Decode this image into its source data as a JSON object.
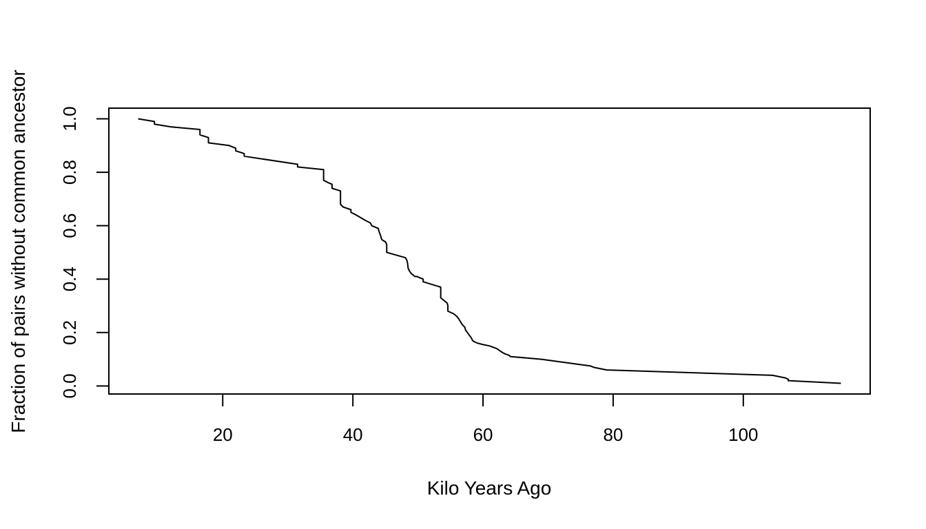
{
  "chart_data": {
    "type": "line",
    "title": "",
    "xlabel": "Kilo Years Ago",
    "ylabel": "Fraction of pairs without common ancestor",
    "xlim": [
      2.5,
      119.5
    ],
    "ylim": [
      -0.03,
      1.04
    ],
    "xticks": [
      20,
      40,
      60,
      80,
      100
    ],
    "xtick_labels": [
      "20",
      "40",
      "60",
      "80",
      "100"
    ],
    "yticks": [
      0,
      0.2,
      0.4,
      0.6,
      0.8,
      1.0
    ],
    "ytick_labels": [
      "0.0",
      "0.2",
      "0.4",
      "0.6",
      "0.8",
      "1.0"
    ],
    "grid": false,
    "line_color": "#000000",
    "series": [
      {
        "x": [
          7,
          9.5,
          9.5,
          12,
          16.5,
          16.5,
          17.8,
          17.8,
          21,
          22,
          22,
          23.3,
          23.3,
          31.5,
          31.5,
          35.5,
          35.5,
          36.3,
          36.8,
          36.8,
          38.1,
          38.1,
          38.5,
          39.7,
          39.7,
          40.5,
          41.2,
          41.9,
          42.7,
          42.9,
          42.9,
          43.9,
          44.0,
          44.3,
          44.4,
          44.6,
          45.0,
          45.2,
          45.2,
          48.1,
          48.1,
          48.3,
          48.4,
          48.5,
          48.7,
          49.0,
          49.3,
          49.5,
          49.8,
          50.3,
          50.8,
          50.8,
          53.5,
          53.5,
          54.5,
          54.6,
          54.6,
          55.5,
          56.0,
          56.3,
          56.8,
          57.2,
          57.3,
          57.6,
          57.9,
          58.2,
          58.4,
          58.7,
          59.2,
          60.0,
          61.0,
          62.1,
          62.7,
          63.0,
          63.4,
          64.0,
          64.2,
          64.3,
          64.3,
          69.0,
          75.0,
          76.5,
          77.0,
          79.0,
          104.5,
          106.5,
          106.9,
          106.9,
          115.0
        ],
        "y": [
          1.0,
          0.99,
          0.98,
          0.97,
          0.96,
          0.94,
          0.93,
          0.91,
          0.9,
          0.89,
          0.88,
          0.87,
          0.86,
          0.83,
          0.82,
          0.81,
          0.77,
          0.76,
          0.755,
          0.74,
          0.73,
          0.68,
          0.67,
          0.66,
          0.65,
          0.64,
          0.63,
          0.62,
          0.61,
          0.6,
          0.6,
          0.59,
          0.58,
          0.56,
          0.55,
          0.545,
          0.54,
          0.53,
          0.5,
          0.48,
          0.48,
          0.47,
          0.46,
          0.44,
          0.43,
          0.42,
          0.415,
          0.41,
          0.41,
          0.405,
          0.4,
          0.39,
          0.37,
          0.33,
          0.31,
          0.3,
          0.28,
          0.27,
          0.26,
          0.25,
          0.23,
          0.22,
          0.21,
          0.2,
          0.19,
          0.18,
          0.17,
          0.165,
          0.16,
          0.155,
          0.15,
          0.14,
          0.13,
          0.125,
          0.12,
          0.115,
          0.11,
          0.11,
          0.11,
          0.1,
          0.08,
          0.075,
          0.07,
          0.06,
          0.04,
          0.03,
          0.025,
          0.02,
          0.01
        ]
      }
    ]
  }
}
